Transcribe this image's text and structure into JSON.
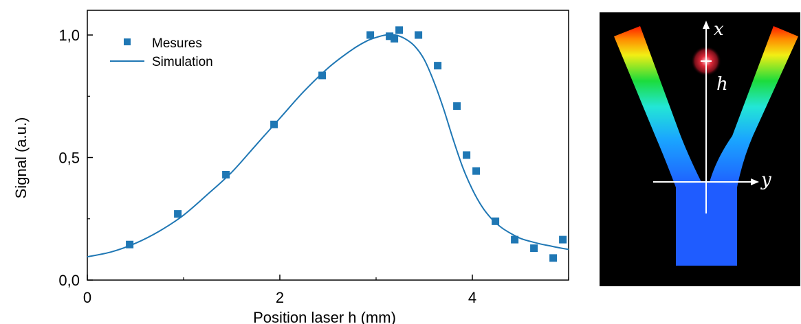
{
  "chart_data": {
    "type": "scatter",
    "xlabel": "Position laser h (mm)",
    "ylabel": "Signal (a.u.)",
    "xlim": [
      0,
      5
    ],
    "ylim": [
      0,
      1.1
    ],
    "xticks": [
      0,
      2,
      4
    ],
    "xtick_labels": [
      "0",
      "2",
      "4"
    ],
    "yticks": [
      0,
      0.5,
      1.0
    ],
    "ytick_labels": [
      "0,0",
      "0,5",
      "1,0"
    ],
    "grid": false,
    "legend_position": "top-left",
    "series": [
      {
        "name": "Mesures",
        "type": "scatter",
        "color": "#1f77b4",
        "x": [
          0.44,
          0.94,
          1.44,
          1.94,
          2.44,
          2.94,
          3.14,
          3.19,
          3.24,
          3.44,
          3.64,
          3.84,
          3.94,
          4.04,
          4.24,
          4.44,
          4.64,
          4.84,
          4.94
        ],
        "y": [
          0.145,
          0.27,
          0.43,
          0.635,
          0.835,
          1.0,
          0.995,
          0.985,
          1.02,
          1.0,
          0.875,
          0.71,
          0.51,
          0.445,
          0.24,
          0.165,
          0.13,
          0.09,
          0.165
        ]
      },
      {
        "name": "Simulation",
        "type": "line",
        "color": "#1f77b4",
        "x": [
          0,
          0.25,
          0.5,
          0.75,
          1.0,
          1.25,
          1.5,
          1.75,
          2.0,
          2.25,
          2.5,
          2.75,
          2.9,
          3.0,
          3.1,
          3.2,
          3.3,
          3.4,
          3.5,
          3.6,
          3.7,
          3.8,
          3.9,
          4.0,
          4.1,
          4.2,
          4.3,
          4.4,
          4.5,
          4.6,
          4.7,
          4.8,
          4.9,
          5.0
        ],
        "y": [
          0.095,
          0.115,
          0.15,
          0.2,
          0.265,
          0.35,
          0.44,
          0.55,
          0.66,
          0.77,
          0.865,
          0.94,
          0.975,
          0.99,
          1.0,
          1.0,
          0.985,
          0.955,
          0.9,
          0.81,
          0.7,
          0.575,
          0.46,
          0.37,
          0.3,
          0.25,
          0.215,
          0.19,
          0.17,
          0.158,
          0.148,
          0.14,
          0.132,
          0.125
        ]
      }
    ]
  },
  "diagram": {
    "axis_x_label": "x",
    "axis_y_label": "y",
    "h_label": "h"
  },
  "colors": {
    "series": "#1f77b4",
    "diagram_background": "#000000"
  }
}
